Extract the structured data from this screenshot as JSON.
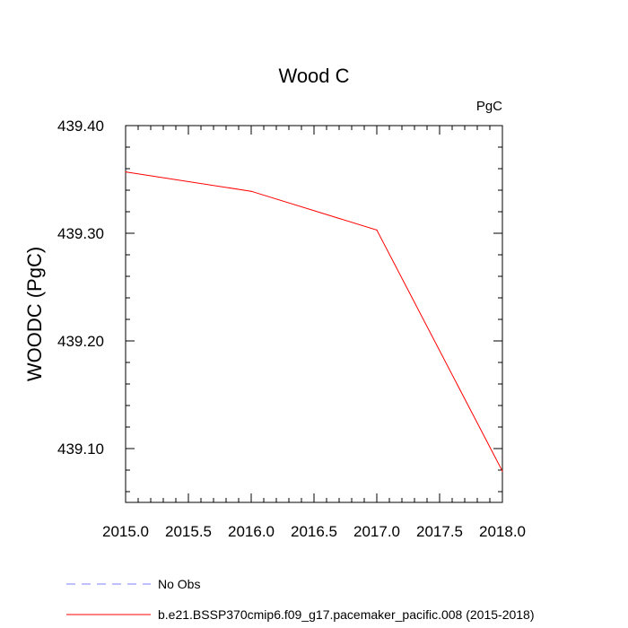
{
  "chart_data": {
    "type": "line",
    "title": "Wood C",
    "units_label": "PgC",
    "xlabel": "",
    "ylabel": "WOODC  (PgC)",
    "xlim": [
      2015.0,
      2018.0
    ],
    "ylim": [
      439.05,
      439.4
    ],
    "x_ticks": [
      2015.0,
      2015.5,
      2016.0,
      2016.5,
      2017.0,
      2017.5,
      2018.0
    ],
    "x_tick_labels": [
      "2015.0",
      "2015.5",
      "2016.0",
      "2016.5",
      "2017.0",
      "2017.5",
      "2018.0"
    ],
    "y_ticks": [
      439.1,
      439.2,
      439.3,
      439.4
    ],
    "y_tick_labels": [
      "439.10",
      "439.20",
      "439.30",
      "439.40"
    ],
    "grid": false,
    "legend_position": "bottom",
    "series": [
      {
        "name": "b.e21.BSSP370cmip6.f09_g17.pacemaker_pacific.008 (2015-2018)",
        "color": "#ff0000",
        "dash": "solid",
        "x": [
          2015.0,
          2016.0,
          2017.0,
          2018.0
        ],
        "y": [
          439.357,
          439.339,
          439.303,
          439.079
        ]
      },
      {
        "name": "No Obs",
        "color": "#7f7fff",
        "dash": "dashed",
        "x": [],
        "y": []
      }
    ]
  }
}
